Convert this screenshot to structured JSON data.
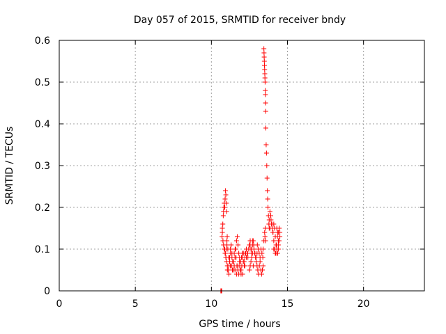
{
  "chart_data": {
    "type": "scatter",
    "title": "Day 057 of 2015, SRMTID for receiver bndy",
    "xlabel": "GPS time / hours",
    "ylabel": "SRMTID / TECUs",
    "xlim": [
      0,
      24
    ],
    "ylim": [
      0,
      0.6
    ],
    "xticks": [
      0,
      5,
      10,
      15,
      20
    ],
    "yticks": [
      0,
      0.1,
      0.2,
      0.3,
      0.4,
      0.5,
      0.6
    ],
    "xtick_labels": [
      "0",
      "5",
      "10",
      "15",
      "20"
    ],
    "ytick_labels": [
      "0",
      "0.1",
      "0.2",
      "0.3",
      "0.4",
      "0.5",
      "0.6"
    ],
    "grid": true,
    "marker": "+",
    "color": "#ff0000",
    "series": [
      {
        "name": "SRMTID",
        "x": [
          10.62,
          10.65,
          10.68,
          10.7,
          10.72,
          10.75,
          10.78,
          10.8,
          10.82,
          10.85,
          10.88,
          10.9,
          10.92,
          10.95,
          10.98,
          11.0,
          10.72,
          10.76,
          10.8,
          10.84,
          10.88,
          10.92,
          10.96,
          11.0,
          11.02,
          11.04,
          10.9,
          10.95,
          11.0,
          11.05,
          11.1,
          11.15,
          11.2,
          11.25,
          11.3,
          11.35,
          11.4,
          11.45,
          11.5,
          11.55,
          11.6,
          11.65,
          11.7,
          11.75,
          11.8,
          11.85,
          11.9,
          11.95,
          12.0,
          12.05,
          12.1,
          12.15,
          12.2,
          11.02,
          11.08,
          11.14,
          11.2,
          11.26,
          11.32,
          11.38,
          11.44,
          11.5,
          11.56,
          11.62,
          11.68,
          11.74,
          11.8,
          11.86,
          11.92,
          11.98,
          12.04,
          12.1,
          12.16,
          11.05,
          11.15,
          11.25,
          11.35,
          11.45,
          11.55,
          11.65,
          11.75,
          11.85,
          11.95,
          12.05,
          12.2,
          12.25,
          12.3,
          12.35,
          12.4,
          12.45,
          12.5,
          12.55,
          12.6,
          12.65,
          12.7,
          12.75,
          12.8,
          12.85,
          12.9,
          12.95,
          13.0,
          12.22,
          12.3,
          12.38,
          12.46,
          12.54,
          12.62,
          12.7,
          12.78,
          12.86,
          12.94,
          12.5,
          12.55,
          12.6,
          12.65,
          12.7,
          12.75,
          13.0,
          13.05,
          13.1,
          13.15,
          13.2,
          13.25,
          13.3,
          13.35,
          13.4,
          13.02,
          13.08,
          13.14,
          13.2,
          13.26,
          13.32,
          13.38,
          13.4,
          13.45,
          13.5,
          13.52,
          13.54,
          13.56,
          13.45,
          13.46,
          13.47,
          13.48,
          13.49,
          13.5,
          13.51,
          13.52,
          13.53,
          13.54,
          13.55,
          13.56,
          13.57,
          13.58,
          13.6,
          13.62,
          13.64,
          13.66,
          13.68,
          13.7,
          13.72,
          13.75,
          13.78,
          13.8,
          13.8,
          13.85,
          13.9,
          13.95,
          14.0,
          14.05,
          14.1,
          14.15,
          14.2,
          14.25,
          14.3,
          14.35,
          14.4,
          14.45,
          14.5,
          13.85,
          13.92,
          13.98,
          14.04,
          14.1,
          14.16,
          14.22,
          14.28,
          14.34,
          14.4,
          14.46,
          14.1,
          14.2,
          14.3,
          14.4,
          14.45,
          14.5,
          14.3,
          14.35,
          14.4
        ],
        "y": [
          0.0,
          0.0,
          0.0,
          0.13,
          0.15,
          0.16,
          0.18,
          0.19,
          0.2,
          0.21,
          0.2,
          0.22,
          0.24,
          0.23,
          0.21,
          0.19,
          0.14,
          0.12,
          0.11,
          0.1,
          0.1,
          0.09,
          0.08,
          0.1,
          0.12,
          0.13,
          0.09,
          0.08,
          0.07,
          0.06,
          0.05,
          0.06,
          0.08,
          0.1,
          0.11,
          0.09,
          0.07,
          0.05,
          0.06,
          0.08,
          0.1,
          0.12,
          0.13,
          0.11,
          0.09,
          0.07,
          0.05,
          0.04,
          0.06,
          0.08,
          0.09,
          0.07,
          0.06,
          0.11,
          0.1,
          0.08,
          0.07,
          0.09,
          0.06,
          0.05,
          0.07,
          0.09,
          0.1,
          0.08,
          0.06,
          0.05,
          0.04,
          0.06,
          0.07,
          0.08,
          0.09,
          0.07,
          0.06,
          0.05,
          0.04,
          0.06,
          0.08,
          0.07,
          0.05,
          0.04,
          0.06,
          0.08,
          0.05,
          0.04,
          0.08,
          0.09,
          0.1,
          0.09,
          0.08,
          0.1,
          0.11,
          0.12,
          0.1,
          0.09,
          0.11,
          0.12,
          0.1,
          0.09,
          0.08,
          0.07,
          0.09,
          0.09,
          0.08,
          0.09,
          0.1,
          0.11,
          0.1,
          0.12,
          0.11,
          0.09,
          0.08,
          0.05,
          0.06,
          0.07,
          0.08,
          0.09,
          0.06,
          0.06,
          0.05,
          0.04,
          0.06,
          0.07,
          0.05,
          0.04,
          0.05,
          0.06,
          0.11,
          0.1,
          0.09,
          0.08,
          0.1,
          0.09,
          0.08,
          0.1,
          0.12,
          0.14,
          0.13,
          0.15,
          0.12,
          0.58,
          0.57,
          0.56,
          0.55,
          0.54,
          0.53,
          0.52,
          0.51,
          0.5,
          0.48,
          0.47,
          0.45,
          0.43,
          0.39,
          0.35,
          0.33,
          0.3,
          0.27,
          0.24,
          0.22,
          0.2,
          0.18,
          0.16,
          0.15,
          0.17,
          0.19,
          0.18,
          0.16,
          0.15,
          0.14,
          0.16,
          0.15,
          0.13,
          0.11,
          0.1,
          0.09,
          0.11,
          0.12,
          0.13,
          0.15,
          0.17,
          0.16,
          0.14,
          0.12,
          0.1,
          0.09,
          0.11,
          0.13,
          0.14,
          0.15,
          0.1,
          0.09,
          0.09,
          0.1,
          0.12,
          0.14,
          0.15,
          0.14,
          0.12
        ]
      }
    ]
  }
}
